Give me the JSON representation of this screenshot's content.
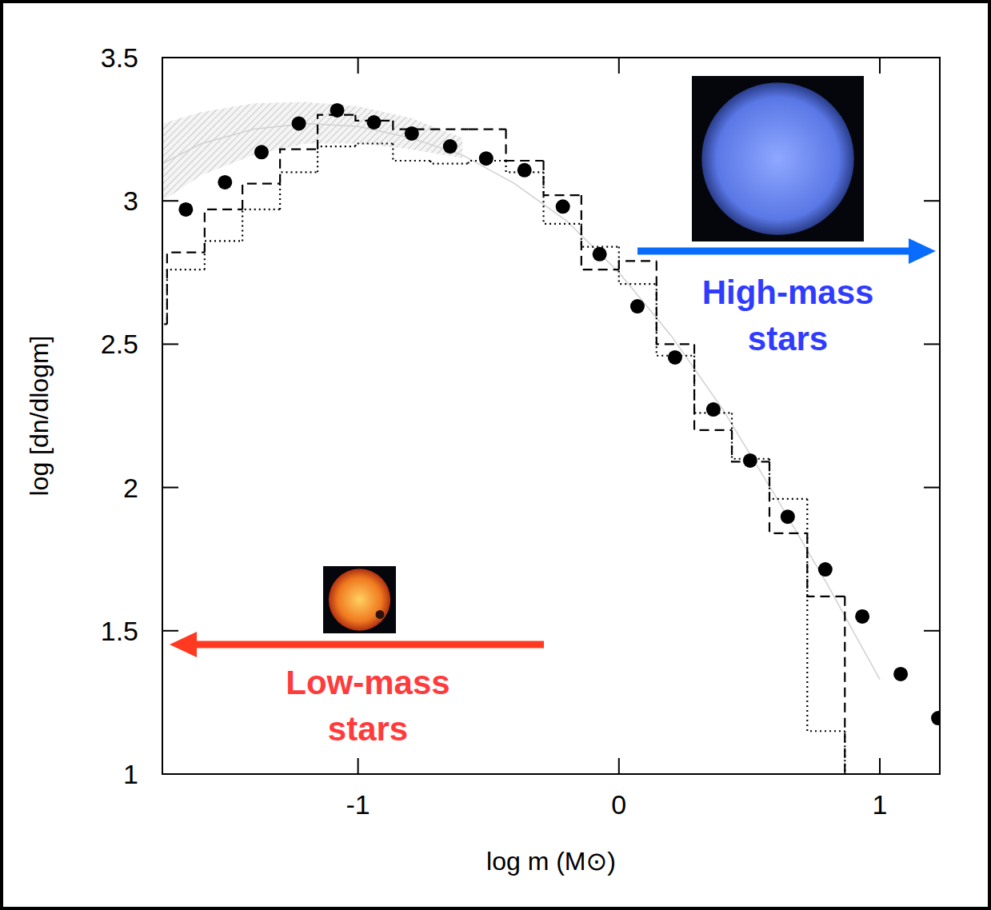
{
  "chart_data": {
    "type": "scatter",
    "x_label": "log m (M⊙)",
    "y_label": "log [dn/dlogm]",
    "xlim": [
      -1.75,
      1.23
    ],
    "ylim": [
      1,
      3.5
    ],
    "xticks": [
      -1,
      0,
      1
    ],
    "yticks": [
      1,
      1.5,
      2,
      2.5,
      3,
      3.5
    ],
    "series": [
      {
        "type": "scatter",
        "color": "#000000",
        "marker": "circle",
        "x": [
          -1.66,
          -1.51,
          -1.37,
          -1.227,
          -1.08,
          -0.939,
          -0.794,
          -0.647,
          -0.509,
          -0.362,
          -0.215,
          -0.074,
          0.071,
          0.215,
          0.362,
          0.503,
          0.647,
          0.791,
          0.933,
          1.08,
          1.224
        ],
        "values": [
          2.97,
          3.065,
          3.17,
          3.27,
          3.316,
          3.274,
          3.235,
          3.19,
          3.148,
          3.107,
          2.98,
          2.814,
          2.632,
          2.454,
          2.272,
          2.094,
          1.898,
          1.714,
          1.55,
          1.349,
          1.195
        ]
      },
      {
        "type": "step",
        "color": "#000000",
        "line_style": "dashed",
        "bins": [
          -1.876,
          -1.732,
          -1.588,
          -1.443,
          -1.299,
          -1.155,
          -1.01,
          -0.866,
          -0.722,
          -0.577,
          -0.433,
          -0.289,
          -0.144,
          0,
          0.144,
          0.289,
          0.433,
          0.577,
          0.722,
          0.866
        ],
        "values": [
          2.57,
          2.82,
          2.97,
          3.06,
          3.18,
          3.3,
          3.28,
          3.25,
          3.25,
          3.25,
          3.14,
          3.02,
          2.76,
          2.79,
          2.5,
          2.2,
          2.09,
          1.84,
          1.62
        ]
      },
      {
        "type": "step",
        "color": "#000000",
        "line_style": "dotted",
        "bins": [
          -1.876,
          -1.732,
          -1.588,
          -1.443,
          -1.299,
          -1.155,
          -1.01,
          -0.866,
          -0.722,
          -0.577,
          -0.433,
          -0.289,
          -0.144,
          0,
          0.144,
          0.289,
          0.433,
          0.577,
          0.722,
          0.866
        ],
        "values": [
          2.57,
          2.76,
          2.86,
          2.97,
          3.1,
          3.19,
          3.2,
          3.14,
          3.13,
          3.14,
          3.1,
          2.92,
          2.84,
          2.71,
          2.46,
          2.26,
          2.1,
          1.96,
          1.15
        ]
      },
      {
        "type": "area",
        "color": "#c8c8c8",
        "x": [
          -1.75,
          -1.6,
          -1.4,
          -1.2,
          -1.0,
          -0.8,
          -0.6
        ],
        "lower": [
          3.0,
          3.09,
          3.16,
          3.2,
          3.2,
          3.18,
          3.15
        ],
        "upper": [
          3.27,
          3.31,
          3.34,
          3.345,
          3.33,
          3.29,
          3.22
        ]
      },
      {
        "type": "line",
        "color": "#d0d0d0",
        "x": [
          -1.75,
          -1.6,
          -1.4,
          -1.2,
          -1.0,
          -0.8,
          -0.6,
          -0.4,
          -0.2,
          0,
          0.2,
          0.4,
          0.6,
          0.8,
          1.0
        ],
        "values": [
          3.13,
          3.2,
          3.25,
          3.27,
          3.26,
          3.22,
          3.16,
          3.06,
          2.93,
          2.75,
          2.53,
          2.27,
          1.97,
          1.66,
          1.33
        ]
      }
    ],
    "annotations": [
      {
        "text": "High-mass stars",
        "color": "#2f3cff"
      },
      {
        "text": "Low-mass stars",
        "color": "#ff3b3b"
      }
    ]
  }
}
